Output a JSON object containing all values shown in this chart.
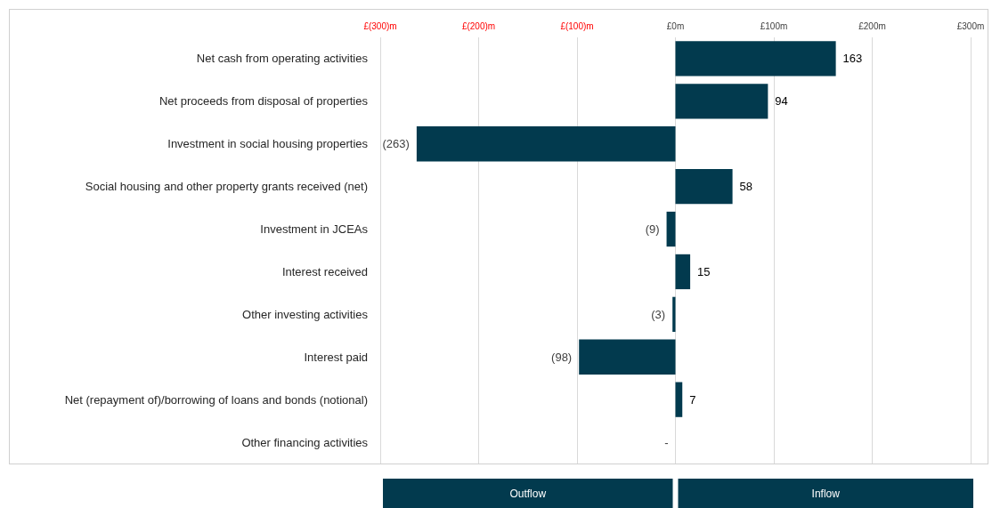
{
  "chart_data": {
    "type": "bar",
    "orientation": "horizontal",
    "categories": [
      "Net cash from operating activities",
      "Net proceeds from disposal of properties",
      "Investment in social housing properties",
      "Social housing and other property grants received (net)",
      "Investment in JCEAs",
      "Interest received",
      "Other investing activities",
      "Interest paid",
      "Net (repayment of)/borrowing of loans and bonds (notional)",
      "Other financing activities"
    ],
    "values": [
      163,
      94,
      -263,
      58,
      -9,
      15,
      -3,
      -98,
      7,
      0
    ],
    "value_labels": [
      "163",
      "94",
      "(263)",
      "58",
      "(9)",
      "15",
      "(3)",
      "(98)",
      "7",
      "-"
    ],
    "color": "#023a4e",
    "xlim": [
      -300,
      300
    ],
    "xticks": [
      {
        "value": -300,
        "label": "£(300)m"
      },
      {
        "value": -200,
        "label": "£(200)m"
      },
      {
        "value": -100,
        "label": "£(100)m"
      },
      {
        "value": 0,
        "label": "£0m"
      },
      {
        "value": 100,
        "label": "£100m"
      },
      {
        "value": 200,
        "label": "£200m"
      },
      {
        "value": 300,
        "label": "£300m"
      }
    ],
    "grid": "x",
    "annotations": [
      "Outflow",
      "Inflow"
    ]
  }
}
